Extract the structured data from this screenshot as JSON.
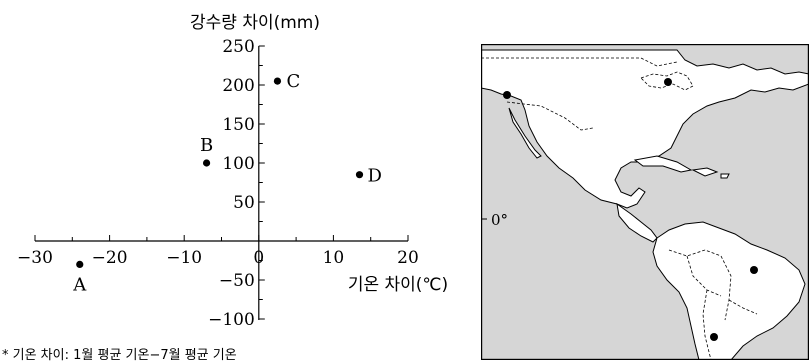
{
  "chart_data": {
    "type": "scatter",
    "ylabel": "강수량 차이(mm)",
    "xlabel": "기온 차이(℃)",
    "xlim": [
      -30,
      20
    ],
    "ylim": [
      -100,
      250
    ],
    "x_ticks": [
      -30,
      -20,
      -10,
      0,
      10,
      20
    ],
    "y_ticks": [
      -100,
      -50,
      50,
      100,
      150,
      200,
      250
    ],
    "grid": false,
    "points": [
      {
        "label": "A",
        "x": -24,
        "y": -30
      },
      {
        "label": "B",
        "x": -7,
        "y": 100
      },
      {
        "label": "C",
        "x": 2.5,
        "y": 205
      },
      {
        "label": "D",
        "x": 13.5,
        "y": 85
      }
    ],
    "footnote": "* 기온 차이: 1월 평균 기온−7월 평균 기온"
  },
  "map": {
    "equator_label": "0°",
    "colors": {
      "ocean": "#d6d6d6",
      "land": "#ffffff"
    }
  }
}
